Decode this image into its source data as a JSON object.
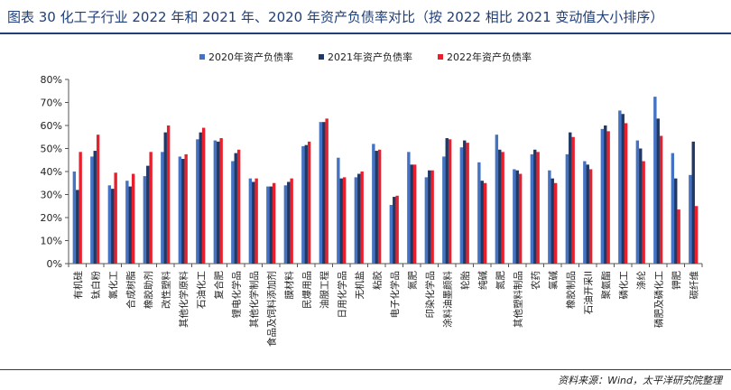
{
  "title": "图表 30 化工子行业 2022 年和 2021 年、2020 年资产负债率对比（按 2022 相比 2021 变动值大小排序）",
  "source": "资料来源：Wind，太平洋研究院整理",
  "colors": {
    "s2020": "#4472c4",
    "s2021": "#203864",
    "s2022": "#e8202e",
    "axis": "#555555",
    "rule": "#1f3f7a"
  },
  "chart_data": {
    "type": "bar",
    "title": "",
    "xlabel": "",
    "ylabel": "",
    "ylim": [
      0,
      80
    ],
    "yticks": [
      "0%",
      "10%",
      "20%",
      "30%",
      "40%",
      "50%",
      "60%",
      "70%",
      "80%"
    ],
    "grid": false,
    "legend_position": "top",
    "categories": [
      "有机硅",
      "钛白粉",
      "氯化工",
      "合成树脂",
      "橡胶助剂",
      "改性塑料",
      "其他化学原料",
      "石油化工",
      "复合肥",
      "锂电化学品",
      "其他化学制品",
      "食品及饲料添加剂",
      "膜材料",
      "民爆用品",
      "油服工程",
      "日用化学品",
      "无机盐",
      "粘胶",
      "电子化学品",
      "氮肥",
      "印染化学品",
      "涂料油墨颜料",
      "轮胎",
      "纯碱",
      "氮肥",
      "其他塑料制品",
      "农药",
      "氯碱",
      "橡胶制品",
      "石油开采II",
      "聚氨酯",
      "磷化工",
      "涤纶",
      "磷肥及磷化工",
      "钾肥",
      "碳纤维"
    ],
    "series": [
      {
        "name": "2020年资产负债率",
        "values": [
          40,
          46.5,
          34,
          36,
          38,
          48.5,
          46.5,
          54,
          53.5,
          44.5,
          37,
          33.5,
          34,
          51,
          61.5,
          46,
          37.5,
          52,
          25.5,
          48.5,
          37.5,
          46.5,
          50.5,
          44,
          56,
          41,
          47.5,
          40.5,
          47.5,
          44.5,
          58.5,
          66.5,
          53.5,
          72.5,
          48,
          38.5
        ]
      },
      {
        "name": "2021年资产负债率",
        "values": [
          32,
          49,
          32.5,
          33.5,
          42.5,
          57,
          45.5,
          57,
          53,
          48,
          35.5,
          33.5,
          35.5,
          51.5,
          61.5,
          37,
          39,
          49,
          29,
          43,
          40.5,
          54.5,
          53.5,
          36,
          49.5,
          40.5,
          49.5,
          37,
          57,
          43,
          60,
          65,
          50,
          63,
          37,
          53
        ]
      },
      {
        "name": "2022年资产负债率",
        "values": [
          48.5,
          56,
          39.5,
          39,
          48.5,
          60,
          47.5,
          59,
          54.5,
          49.5,
          37,
          35,
          37,
          53,
          63,
          37.5,
          40,
          49.5,
          29.5,
          43,
          40.5,
          54,
          52.5,
          35,
          48.5,
          39,
          48.5,
          35,
          55,
          41,
          57.5,
          61,
          44.5,
          55.5,
          23.5,
          25
        ]
      }
    ]
  }
}
